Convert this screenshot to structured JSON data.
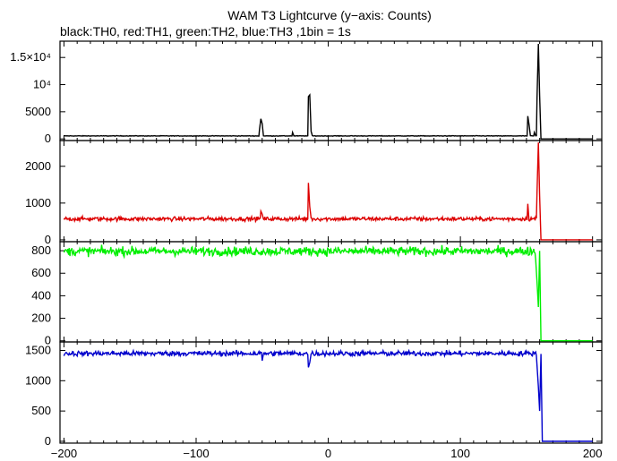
{
  "chart_data": {
    "type": "line",
    "title": "WAM T3 Lightcurve (y−axis: Counts)",
    "subtitle": "black:TH0, red:TH1, green:TH2, blue:TH3 ,1bin = 1s",
    "x_ticks": [
      "−200",
      "−100",
      "0",
      "100",
      "200"
    ],
    "x_tick_values": [
      -200,
      -100,
      0,
      100,
      200
    ],
    "xlim": [
      -203,
      207
    ],
    "panels": [
      {
        "name": "TH0",
        "color": "#000000",
        "ylim": [
          -300,
          18000
        ],
        "y_ticks": [
          {
            "value": 0,
            "label": "0"
          },
          {
            "value": 5000,
            "label": "5000"
          },
          {
            "value": 10000,
            "label": "10⁴"
          },
          {
            "value": 15000,
            "label": "1.5×10⁴"
          }
        ],
        "baseline": 550,
        "noise": 35,
        "cutoff_x": 161,
        "after_level": 0,
        "features": [
          {
            "x": -51,
            "value": 3700
          },
          {
            "x": -50,
            "value": 2800
          },
          {
            "x": -52,
            "value": 1800
          },
          {
            "x": -27,
            "value": 1200
          },
          {
            "x": -15,
            "value": 7800
          },
          {
            "x": -14,
            "value": 8100
          },
          {
            "x": -13,
            "value": 1400
          },
          {
            "x": 151,
            "value": 4200
          },
          {
            "x": 152,
            "value": 2600
          },
          {
            "x": 156,
            "value": 1200
          },
          {
            "x": 158,
            "value": 7600
          },
          {
            "x": 159,
            "value": 17500
          },
          {
            "x": 160,
            "value": 8000
          }
        ]
      },
      {
        "name": "TH1",
        "color": "#dd0000",
        "ylim": [
          -50,
          2700
        ],
        "y_ticks": [
          {
            "value": 0,
            "label": "0"
          },
          {
            "value": 1000,
            "label": "1000"
          },
          {
            "value": 2000,
            "label": "2000"
          }
        ],
        "baseline": 570,
        "noise": 40,
        "cutoff_x": 161,
        "after_level": 0,
        "features": [
          {
            "x": -51,
            "value": 780
          },
          {
            "x": -50,
            "value": 700
          },
          {
            "x": -15,
            "value": 1550
          },
          {
            "x": -14,
            "value": 900
          },
          {
            "x": 151,
            "value": 980
          },
          {
            "x": 158,
            "value": 1300
          },
          {
            "x": 159,
            "value": 2650
          },
          {
            "x": 160,
            "value": 1200
          }
        ]
      },
      {
        "name": "TH2",
        "color": "#00ee00",
        "ylim": [
          -10,
          880
        ],
        "y_ticks": [
          {
            "value": 0,
            "label": "0"
          },
          {
            "value": 200,
            "label": "200"
          },
          {
            "value": 400,
            "label": "400"
          },
          {
            "value": 600,
            "label": "600"
          },
          {
            "value": 800,
            "label": "800"
          }
        ],
        "baseline": 795,
        "noise": 28,
        "cutoff_x": 161,
        "after_level": 0,
        "features": [
          {
            "x": 157,
            "value": 720
          },
          {
            "x": 158,
            "value": 520
          },
          {
            "x": 159,
            "value": 300
          }
        ]
      },
      {
        "name": "TH3",
        "color": "#0000cc",
        "ylim": [
          -30,
          1640
        ],
        "y_ticks": [
          {
            "value": 0,
            "label": "0"
          },
          {
            "value": 500,
            "label": "500"
          },
          {
            "value": 1000,
            "label": "1000"
          },
          {
            "value": 1500,
            "label": "1500"
          }
        ],
        "baseline": 1450,
        "noise": 30,
        "cutoff_x": 162,
        "after_level": 0,
        "features": [
          {
            "x": -50,
            "value": 1330
          },
          {
            "x": -15,
            "value": 1220
          },
          {
            "x": -14,
            "value": 1300
          },
          {
            "x": 158,
            "value": 1250
          },
          {
            "x": 159,
            "value": 900
          },
          {
            "x": 160,
            "value": 500
          }
        ]
      }
    ]
  }
}
